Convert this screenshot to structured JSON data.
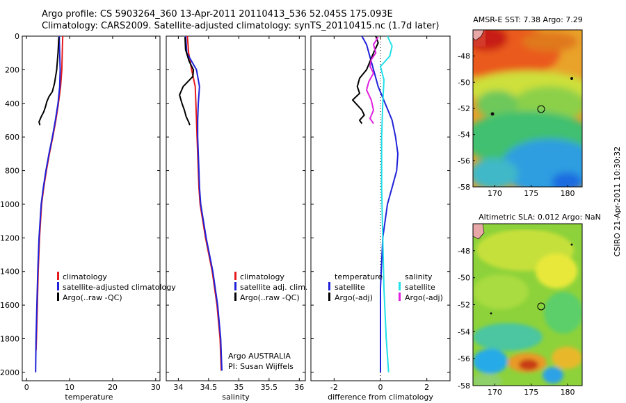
{
  "header": {
    "line1": "Argo profile: CS 5903264_360 13-Apr-2011 20110413_536 52.045S 175.093E",
    "line2": "Climatology: CARS2009. Satellite-adjusted climatology: synTS_20110415.nc (1.7d later)"
  },
  "colors": {
    "climatology": "#e41a1c",
    "satellite": "#1f22d8",
    "argo": "#000000",
    "sal_satellite": "#22e0e8",
    "sal_argo": "#e020e0"
  },
  "chart_data": [
    {
      "type": "line",
      "xlabel": "temperature",
      "xlim": [
        -1,
        31
      ],
      "xticks": [
        "0",
        "10",
        "20",
        "30"
      ],
      "xtick_values": [
        0,
        10,
        20,
        30
      ],
      "ylim": [
        2050,
        0
      ],
      "yticks": [
        "0",
        "200",
        "400",
        "600",
        "800",
        "1000",
        "1200",
        "1400",
        "1600",
        "1800",
        "2000"
      ],
      "ytick_values": [
        0,
        200,
        400,
        600,
        800,
        1000,
        1200,
        1400,
        1600,
        1800,
        2000
      ],
      "legend": [
        "climatology",
        "satellite-adjusted climatology",
        "Argo(..raw -QC)"
      ],
      "legend_position": "bottom-right",
      "series": [
        {
          "name": "climatology",
          "color_key": "climatology",
          "x": [
            8.4,
            8.3,
            8.2,
            7.9,
            7.4,
            6.8,
            6.1,
            5.3,
            4.6,
            4.0,
            3.5,
            3.0,
            2.7,
            2.5,
            2.3,
            2.2
          ],
          "y": [
            0,
            100,
            200,
            300,
            400,
            500,
            600,
            700,
            800,
            900,
            1000,
            1200,
            1400,
            1600,
            1800,
            1870
          ]
        },
        {
          "name": "satellite-adjusted climatology",
          "color_key": "satellite",
          "x": [
            7.6,
            7.7,
            7.8,
            7.7,
            7.3,
            6.7,
            6.0,
            5.2,
            4.5,
            3.9,
            3.4,
            2.9,
            2.6,
            2.4,
            2.2,
            2.1
          ],
          "y": [
            0,
            100,
            200,
            300,
            400,
            500,
            600,
            700,
            800,
            900,
            1000,
            1200,
            1400,
            1600,
            1800,
            2000
          ]
        },
        {
          "name": "Argo(..raw -QC)",
          "color_key": "argo",
          "x": [
            7.5,
            7.3,
            7.0,
            6.5,
            6.0,
            5.2,
            4.7,
            4.4,
            4.0,
            3.4,
            2.9,
            3.1
          ],
          "y": [
            5,
            100,
            200,
            280,
            330,
            360,
            390,
            420,
            450,
            480,
            510,
            530
          ]
        }
      ]
    },
    {
      "type": "line",
      "xlabel": "salinity",
      "xlim": [
        33.8,
        36.1
      ],
      "xticks": [
        "34",
        "34.5",
        "35",
        "35.5",
        "36"
      ],
      "xtick_values": [
        34,
        34.5,
        35,
        35.5,
        36
      ],
      "ylim": [
        2050,
        0
      ],
      "legend": [
        "climatology",
        "satellite adj. clim.",
        "Argo(..raw -QC)"
      ],
      "legend_position": "bottom-right",
      "annotation": [
        "Argo AUSTRALIA",
        "PI: Susan Wijffels"
      ],
      "series": [
        {
          "name": "climatology",
          "color_key": "climatology",
          "x": [
            34.15,
            34.17,
            34.22,
            34.28,
            34.29,
            34.3,
            34.31,
            34.32,
            34.33,
            34.34,
            34.36,
            34.45,
            34.56,
            34.64,
            34.69,
            34.71
          ],
          "y": [
            0,
            100,
            200,
            300,
            400,
            500,
            600,
            700,
            800,
            900,
            1000,
            1200,
            1400,
            1600,
            1800,
            1990
          ]
        },
        {
          "name": "satellite adj. clim.",
          "color_key": "satellite",
          "x": [
            34.12,
            34.14,
            34.3,
            34.35,
            34.33,
            34.32,
            34.32,
            34.33,
            34.34,
            34.35,
            34.37,
            34.46,
            34.57,
            34.65,
            34.7,
            34.72
          ],
          "y": [
            0,
            100,
            200,
            300,
            400,
            500,
            600,
            700,
            800,
            900,
            1000,
            1200,
            1400,
            1600,
            1800,
            1990
          ]
        },
        {
          "name": "Argo(..raw -QC)",
          "color_key": "argo",
          "x": [
            34.11,
            34.12,
            34.18,
            34.25,
            34.24,
            34.08,
            34.02,
            34.06,
            34.1,
            34.13,
            34.17,
            34.19
          ],
          "y": [
            5,
            80,
            150,
            200,
            240,
            300,
            350,
            400,
            440,
            480,
            510,
            530
          ]
        }
      ]
    },
    {
      "type": "line",
      "xlabel": "difference from climatology",
      "xlim": [
        -3,
        3
      ],
      "xticks": [
        "-2",
        "0",
        "2"
      ],
      "xtick_values": [
        -2,
        0,
        2
      ],
      "ylim": [
        2050,
        0
      ],
      "legend": [
        "temperature",
        "satellite",
        "Argo(-adj)",
        "salinity",
        "satellite",
        "Argo(-adj)"
      ],
      "legend_position": "bottom",
      "series": [
        {
          "name": "satellite",
          "color_key": "satellite",
          "x": [
            -0.8,
            -0.6,
            -0.4,
            -0.1,
            0.2,
            0.5,
            0.65,
            0.75,
            0.7,
            0.5,
            0.3,
            0.1,
            0.0,
            0.0,
            0.0
          ],
          "y": [
            0,
            50,
            150,
            300,
            400,
            500,
            600,
            700,
            800,
            900,
            1000,
            1200,
            1500,
            1800,
            2000
          ]
        },
        {
          "name": "Argo(-adj)",
          "color_key": "argo",
          "x": [
            -0.2,
            -0.1,
            -0.3,
            -0.6,
            -0.9,
            -1.0,
            -0.9,
            -1.2,
            -1.0,
            -0.8,
            -0.7,
            -0.9,
            -0.8
          ],
          "y": [
            0,
            40,
            100,
            200,
            250,
            300,
            340,
            380,
            410,
            440,
            470,
            500,
            520
          ]
        },
        {
          "name": "satellite",
          "color_key": "sal_satellite",
          "x": [
            0.3,
            0.5,
            0.4,
            0.0,
            0.15,
            0.1,
            0.05,
            0.05,
            0.1,
            0.15,
            0.25,
            0.35
          ],
          "y": [
            0,
            60,
            120,
            180,
            260,
            400,
            600,
            900,
            1200,
            1500,
            1800,
            2000
          ]
        },
        {
          "name": "Argo(-adj)",
          "color_key": "sal_argo",
          "x": [
            -0.1,
            -0.3,
            -0.2,
            -0.4,
            -0.45,
            -0.3,
            -0.5,
            -0.6,
            -0.4,
            -0.3,
            -0.45,
            -0.3
          ],
          "y": [
            5,
            50,
            100,
            140,
            180,
            220,
            270,
            320,
            380,
            440,
            490,
            520
          ]
        }
      ]
    },
    {
      "type": "heatmap",
      "title": "AMSR-E SST: 7.38 Argo: 7.29",
      "xlim": [
        167,
        182
      ],
      "ylim": [
        -58,
        -46
      ],
      "xticks": [
        "170",
        "175",
        "180"
      ],
      "xtick_values": [
        170,
        175,
        180
      ],
      "yticks": [
        "-48",
        "-50",
        "-52",
        "-54",
        "-56",
        "-58"
      ],
      "ytick_values": [
        -48,
        -50,
        -52,
        -54,
        -56,
        -58
      ],
      "marker": {
        "lon": 175.093,
        "lat": -52.045
      }
    },
    {
      "type": "heatmap",
      "title": "Altimetric SLA: 0.012 Argo: NaN",
      "xlim": [
        167,
        182
      ],
      "ylim": [
        -58,
        -46
      ],
      "xticks": [
        "170",
        "175",
        "180"
      ],
      "xtick_values": [
        170,
        175,
        180
      ],
      "yticks": [
        "-48",
        "-50",
        "-52",
        "-54",
        "-56",
        "-58"
      ],
      "ytick_values": [
        -48,
        -50,
        -52,
        -54,
        -56,
        -58
      ],
      "marker": {
        "lon": 175.093,
        "lat": -52.045
      }
    }
  ],
  "side_caption": "CSIRO 21-Apr-2011 10:30:32"
}
